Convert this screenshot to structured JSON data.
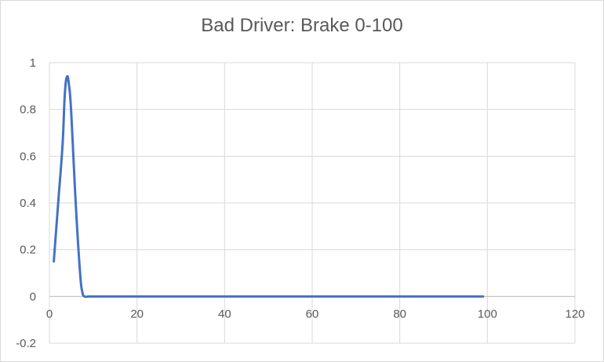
{
  "chart_data": {
    "type": "line",
    "title": "Bad Driver: Brake 0-100",
    "xlabel": "",
    "ylabel": "",
    "xlim": [
      0,
      120
    ],
    "ylim": [
      -0.2,
      1
    ],
    "xticks": [
      0,
      20,
      40,
      60,
      80,
      100,
      120
    ],
    "yticks": [
      -0.2,
      0,
      0.2,
      0.4,
      0.6,
      0.8,
      1
    ],
    "xtick_labels": [
      "0",
      "20",
      "40",
      "60",
      "80",
      "100",
      "120"
    ],
    "ytick_labels": [
      "-0.2",
      "0",
      "0.2",
      "0.4",
      "0.6",
      "0.8",
      "1"
    ],
    "grid": true,
    "series": [
      {
        "color": "#4472c4",
        "x": [
          1,
          2,
          3,
          3.5,
          4,
          4.5,
          5,
          6,
          7,
          7.5,
          8,
          9,
          10,
          20,
          30,
          40,
          50,
          60,
          70,
          80,
          90,
          99
        ],
        "y": [
          0.15,
          0.4,
          0.65,
          0.86,
          0.94,
          0.9,
          0.78,
          0.4,
          0.1,
          0.02,
          0,
          0,
          0,
          0,
          0,
          0,
          0,
          0,
          0,
          0,
          0,
          0
        ]
      }
    ]
  }
}
